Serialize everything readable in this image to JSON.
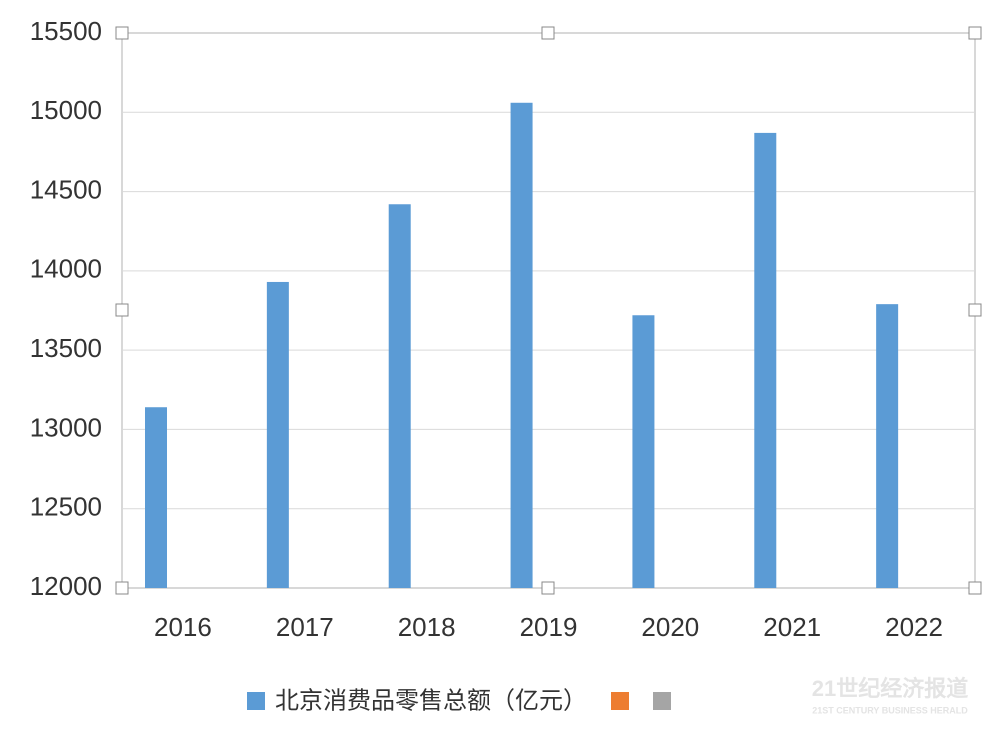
{
  "chart_data": {
    "type": "bar",
    "categories": [
      "2016",
      "2017",
      "2018",
      "2019",
      "2020",
      "2021",
      "2022"
    ],
    "series": [
      {
        "name": "北京消费品零售总额（亿元）",
        "color": "#5b9bd5",
        "values": [
          13140,
          13930,
          14420,
          15060,
          13720,
          14870,
          13790
        ]
      },
      {
        "color": "#ed7d31",
        "values": [
          null,
          null,
          null,
          null,
          null,
          null,
          null
        ]
      },
      {
        "color": "#a5a5a5",
        "values": [
          null,
          null,
          null,
          null,
          null,
          null,
          null
        ]
      }
    ],
    "ylim": [
      12000,
      15500
    ],
    "yticks": [
      12000,
      12500,
      13000,
      13500,
      14000,
      14500,
      15000,
      15500
    ],
    "grid": true,
    "legend": "bottom",
    "watermark": {
      "title": "21世纪经济报道",
      "subtitle": "21ST CENTURY BUSINESS HERALD"
    }
  }
}
